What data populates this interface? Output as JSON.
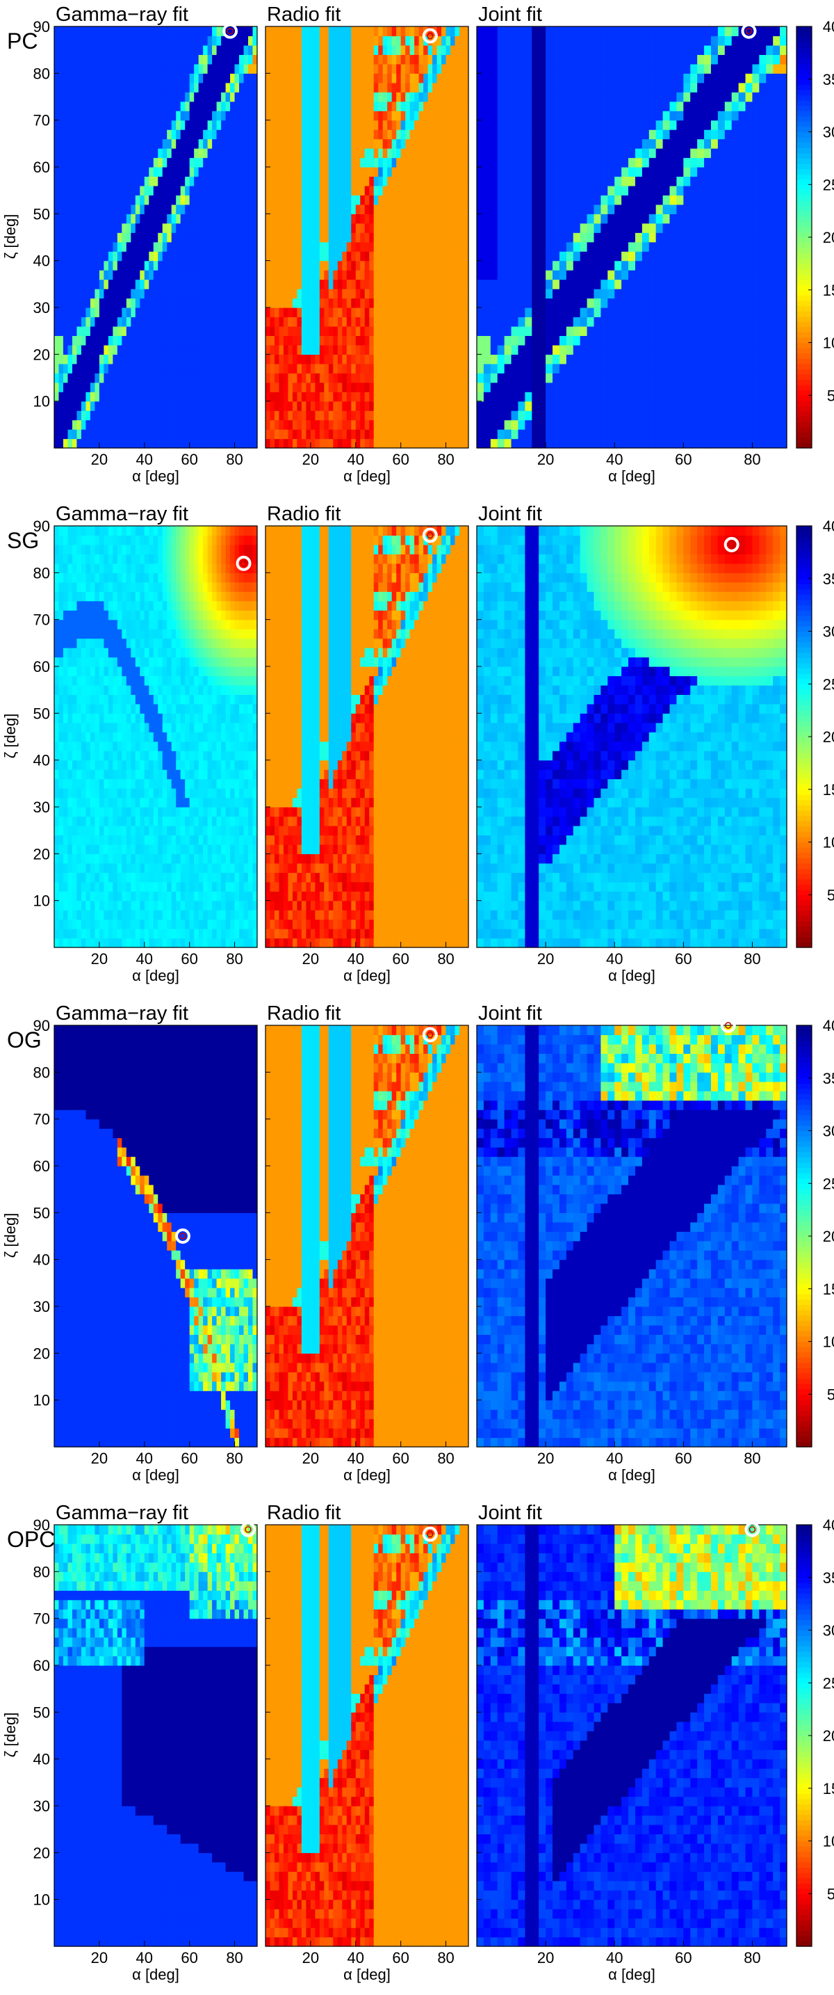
{
  "figure": {
    "panel_titles": [
      "Gamma−ray fit",
      "Radio fit",
      "Joint fit"
    ],
    "xlabel": "α [deg]",
    "ylabel": "ζ [deg]"
  },
  "chart_data": [
    {
      "type": "heatmap",
      "row_label": "PC",
      "xlim": [
        0,
        90
      ],
      "ylim": [
        0,
        90
      ],
      "x_ticks": [
        20,
        40,
        60,
        80
      ],
      "y_ticks": [
        10,
        20,
        30,
        40,
        50,
        60,
        70,
        80,
        90
      ],
      "colorbar": {
        "range": [
          0,
          40
        ],
        "ticks": [
          5,
          10,
          15,
          20,
          25,
          30,
          35,
          40
        ],
        "colormap": "jet_reversed"
      },
      "best_fit": {
        "gamma": {
          "alpha": 78,
          "zeta": 89
        },
        "radio": {
          "alpha": 73,
          "zeta": 88
        },
        "joint": {
          "alpha": 79,
          "zeta": 89
        }
      }
    },
    {
      "type": "heatmap",
      "row_label": "SG",
      "xlim": [
        0,
        90
      ],
      "ylim": [
        0,
        90
      ],
      "x_ticks": [
        20,
        40,
        60,
        80
      ],
      "y_ticks": [
        10,
        20,
        30,
        40,
        50,
        60,
        70,
        80,
        90
      ],
      "colorbar": {
        "range": [
          0,
          40
        ],
        "ticks": [
          5,
          10,
          15,
          20,
          25,
          30,
          35,
          40
        ],
        "colormap": "jet_reversed"
      },
      "best_fit": {
        "gamma": {
          "alpha": 84,
          "zeta": 82
        },
        "radio": {
          "alpha": 73,
          "zeta": 88
        },
        "joint": {
          "alpha": 74,
          "zeta": 86
        }
      }
    },
    {
      "type": "heatmap",
      "row_label": "OG",
      "xlim": [
        0,
        90
      ],
      "ylim": [
        0,
        90
      ],
      "x_ticks": [
        20,
        40,
        60,
        80
      ],
      "y_ticks": [
        10,
        20,
        30,
        40,
        50,
        60,
        70,
        80,
        90
      ],
      "colorbar": {
        "range": [
          0,
          40
        ],
        "ticks": [
          5,
          10,
          15,
          20,
          25,
          30,
          35,
          40
        ],
        "colormap": "jet_reversed"
      },
      "best_fit": {
        "gamma": {
          "alpha": 57,
          "zeta": 45
        },
        "radio": {
          "alpha": 73,
          "zeta": 88
        },
        "joint": {
          "alpha": 73,
          "zeta": 90
        }
      }
    },
    {
      "type": "heatmap",
      "row_label": "OPC",
      "xlim": [
        0,
        90
      ],
      "ylim": [
        0,
        90
      ],
      "x_ticks": [
        20,
        40,
        60,
        80
      ],
      "y_ticks": [
        10,
        20,
        30,
        40,
        50,
        60,
        70,
        80,
        90
      ],
      "colorbar": {
        "range": [
          0,
          40
        ],
        "ticks": [
          5,
          10,
          15,
          20,
          25,
          30,
          35,
          40
        ],
        "colormap": "jet_reversed"
      },
      "best_fit": {
        "gamma": {
          "alpha": 86,
          "zeta": 89
        },
        "radio": {
          "alpha": 73,
          "zeta": 88
        },
        "joint": {
          "alpha": 80,
          "zeta": 89
        }
      }
    }
  ]
}
